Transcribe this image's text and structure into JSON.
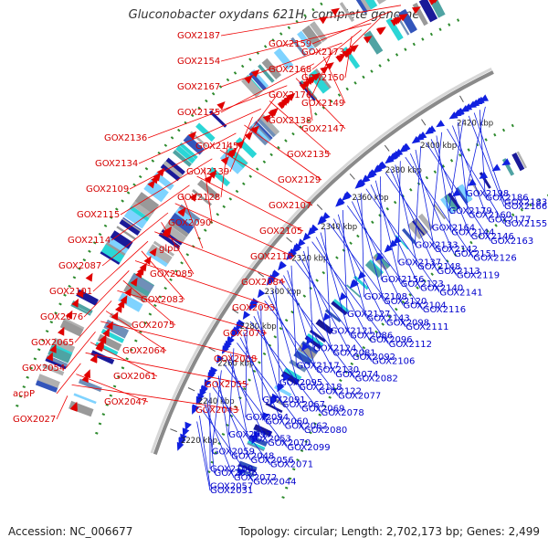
{
  "title": "Gluconobacter oxydans 621H, complete genome",
  "footer": {
    "accession": "Accession: NC_006677",
    "summary": "Topology: circular; Length: 2,702,173 bp; Genes: 2,499"
  },
  "colors": {
    "left_labels": "#d40000",
    "right_labels": "#0000cc",
    "backbone": "#8a8a8a",
    "ring_dots": "#2d8a2d"
  },
  "scale_ticks": [
    {
      "label": "2220 kbp"
    },
    {
      "label": "2240 kbp"
    },
    {
      "label": "2260 kbp"
    },
    {
      "label": "2280 kbp"
    },
    {
      "label": "2300 kbp"
    },
    {
      "label": "2320 kbp"
    },
    {
      "label": "2340 kbp"
    },
    {
      "label": "2360 kbp"
    },
    {
      "label": "2380 kbp"
    },
    {
      "label": "2400 kbp"
    },
    {
      "label": "2420 kbp"
    }
  ],
  "left_genes": [
    "GOX2187",
    "GOX2159",
    "GOX2173",
    "GOX2154",
    "GOX2168",
    "GOX2150",
    "GOX2167",
    "GOX2176",
    "GOX2149",
    "GOX2175",
    "GOX2138",
    "GOX2147",
    "GOX2136",
    "GOX2145",
    "GOX2135",
    "GOX2134",
    "GOX2139",
    "GOX2129",
    "GOX2109",
    "GOX2128",
    "GOX2107",
    "GOX2115",
    "GOX2090",
    "GOX2105",
    "GOX2114",
    "glpD",
    "GOX2110",
    "GOX2087",
    "GOX2085",
    "GOX2084",
    "GOX2101",
    "GOX2083",
    "GOX2093",
    "GOX2076",
    "GOX2075",
    "GOX2079",
    "GOX2065",
    "GOX2064",
    "GOX2068",
    "GOX2054",
    "GOX2061",
    "GOX2055",
    "acpP",
    "GOX2047",
    "GOX2043",
    "GOX2027"
  ],
  "right_genes": [
    "GOX2198",
    "GOX2186",
    "GOX2183",
    "GOX2166",
    "GOX2179",
    "GOX2160",
    "GOX2177",
    "GOX2155",
    "GOX2164",
    "GOX2144",
    "GOX2146",
    "GOX2163",
    "GOX2133",
    "GOX2142",
    "GOX2151",
    "GOX2126",
    "GOX2137",
    "GOX2148",
    "GOX2113",
    "GOX2119",
    "GOX2156",
    "GOX2123",
    "GOX2140",
    "GOX2141",
    "GOX2108",
    "GOX2120",
    "GOX2104",
    "GOX2116",
    "GOX2127",
    "GOX2143",
    "GOX2098",
    "GOX2111",
    "GOX2121",
    "GOX2086",
    "GOX2096",
    "GOX2112",
    "GOX2124",
    "GOX2081",
    "GOX2092",
    "GOX2106",
    "GOX2117",
    "GOX2130",
    "GOX2074",
    "GOX2082",
    "GOX2095",
    "GOX2118",
    "GOX2122",
    "GOX2077",
    "GOX2091",
    "GOX2067",
    "GOX2069",
    "GOX2078",
    "GOX2094",
    "GOX2060",
    "GOX2062",
    "GOX2080",
    "GOX2097",
    "GOX2053",
    "GOX2070",
    "GOX2099",
    "GOX2059",
    "GOX2048",
    "GOX2056",
    "GOX2071",
    "GOX2100",
    "GOX2036",
    "GOX2072",
    "GOX2044",
    "GOX2057",
    "GOX2031"
  ]
}
